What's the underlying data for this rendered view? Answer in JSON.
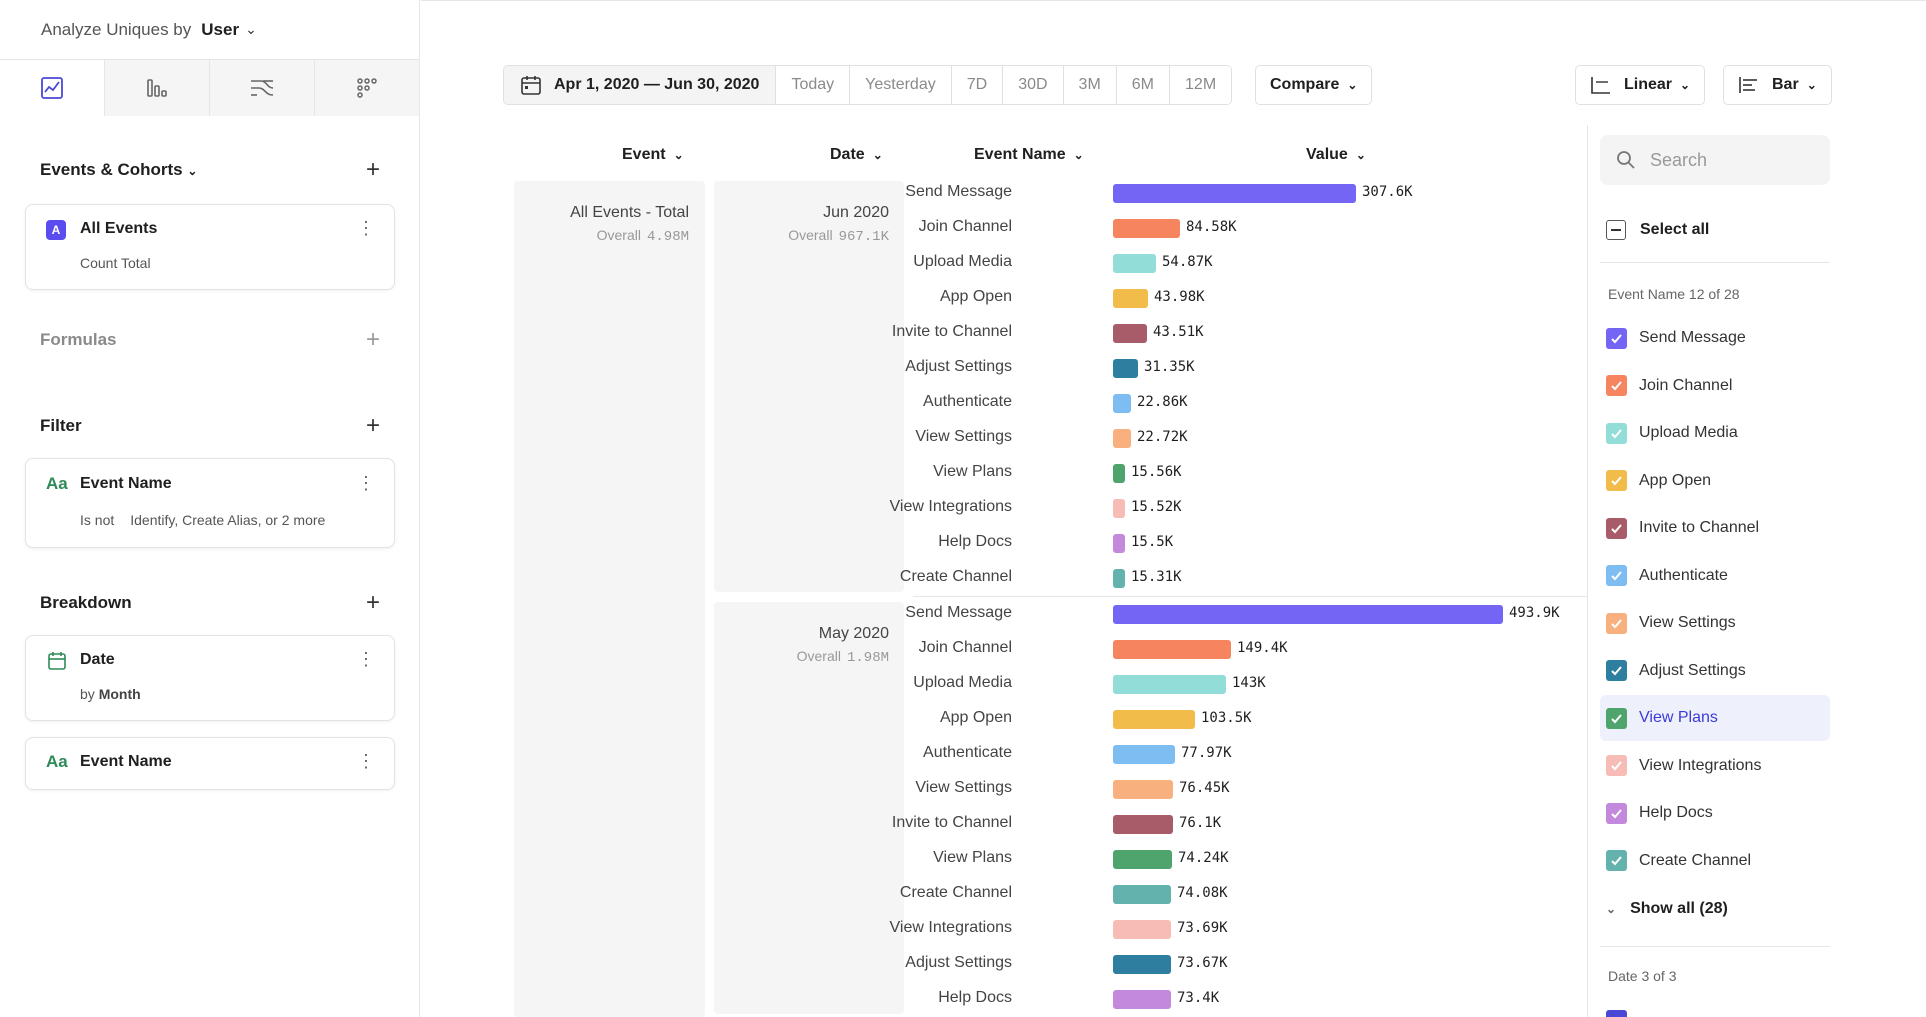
{
  "sidebar": {
    "analyze_label": "Analyze Uniques by",
    "analyze_value": "User",
    "events_cohorts": "Events & Cohorts",
    "all_events": "All Events",
    "badge": "A",
    "count_total": "Count Total",
    "formulas": "Formulas",
    "filter": "Filter",
    "filter_prop": "Event Name",
    "filter_prop_icon": "Aa",
    "filter_op": "Is not",
    "filter_values": "Identify, Create Alias, or 2 more",
    "breakdown": "Breakdown",
    "breakdown_date": "Date",
    "breakdown_by": "by",
    "breakdown_by_unit": "Month",
    "breakdown_event": "Event Name",
    "breakdown_event_icon": "Aa"
  },
  "toolbar": {
    "date_range": "Apr 1, 2020 — Jun 30, 2020",
    "today": "Today",
    "yesterday": "Yesterday",
    "d7": "7D",
    "d30": "30D",
    "m3": "3M",
    "m6": "6M",
    "m12": "12M",
    "compare": "Compare",
    "scale": "Linear",
    "chart_type": "Bar"
  },
  "columns": {
    "event": "Event",
    "date": "Date",
    "event_name": "Event Name",
    "value": "Value"
  },
  "groups": {
    "event_label": "All Events - Total",
    "overall": "Overall",
    "event_overall": "4.98M",
    "jun_label": "Jun 2020",
    "jun_overall": "967.1K",
    "may_label": "May 2020",
    "may_overall": "1.98M"
  },
  "chart_data": {
    "type": "bar",
    "orientation": "horizontal",
    "series": [
      {
        "name": "Jun 2020",
        "categories": [
          "Send Message",
          "Join Channel",
          "Upload Media",
          "App Open",
          "Invite to Channel",
          "Adjust Settings",
          "Authenticate",
          "View Settings",
          "View Plans",
          "View Integrations",
          "Help Docs",
          "Create Channel"
        ],
        "values": [
          307600,
          84580,
          54870,
          43980,
          43510,
          31350,
          22860,
          22720,
          15560,
          15520,
          15500,
          15310
        ],
        "labels": [
          "307.6K",
          "84.58K",
          "54.87K",
          "43.98K",
          "43.51K",
          "31.35K",
          "22.86K",
          "22.72K",
          "15.56K",
          "15.52K",
          "15.5K",
          "15.31K"
        ]
      },
      {
        "name": "May 2020",
        "categories": [
          "Send Message",
          "Join Channel",
          "Upload Media",
          "App Open",
          "Authenticate",
          "View Settings",
          "Invite to Channel",
          "View Plans",
          "Create Channel",
          "View Integrations",
          "Adjust Settings",
          "Help Docs"
        ],
        "values": [
          493900,
          149400,
          143000,
          103500,
          77970,
          76450,
          76100,
          74240,
          74080,
          73690,
          73670,
          73400
        ],
        "labels": [
          "493.9K",
          "149.4K",
          "143K",
          "103.5K",
          "77.97K",
          "76.45K",
          "76.1K",
          "74.24K",
          "74.08K",
          "73.69K",
          "73.67K",
          "73.4K"
        ]
      }
    ],
    "colors": {
      "Send Message": "#7565f5",
      "Join Channel": "#f5845f",
      "Upload Media": "#93ddd8",
      "App Open": "#f2bc4b",
      "Invite to Channel": "#a85c6a",
      "Adjust Settings": "#2e7ea0",
      "Authenticate": "#7dbdf2",
      "View Settings": "#f7b07e",
      "View Plans": "#4fa46e",
      "View Integrations": "#f7bcb6",
      "Help Docs": "#c389dc",
      "Create Channel": "#64b2ad"
    }
  },
  "legend": {
    "search_placeholder": "Search",
    "select_all": "Select all",
    "event_group": "Event Name 12 of 28",
    "items": [
      {
        "label": "Send Message",
        "color": "#7565f5"
      },
      {
        "label": "Join Channel",
        "color": "#f5845f"
      },
      {
        "label": "Upload Media",
        "color": "#93ddd8"
      },
      {
        "label": "App Open",
        "color": "#f2bc4b"
      },
      {
        "label": "Invite to Channel",
        "color": "#a85c6a"
      },
      {
        "label": "Authenticate",
        "color": "#7dbdf2"
      },
      {
        "label": "View Settings",
        "color": "#f7b07e"
      },
      {
        "label": "Adjust Settings",
        "color": "#2e7ea0"
      },
      {
        "label": "View Plans",
        "color": "#4fa46e"
      },
      {
        "label": "View Integrations",
        "color": "#f7bcb6"
      },
      {
        "label": "Help Docs",
        "color": "#c389dc"
      },
      {
        "label": "Create Channel",
        "color": "#64b2ad"
      }
    ],
    "show_all": "Show all (28)",
    "date_group": "Date 3 of 3"
  }
}
